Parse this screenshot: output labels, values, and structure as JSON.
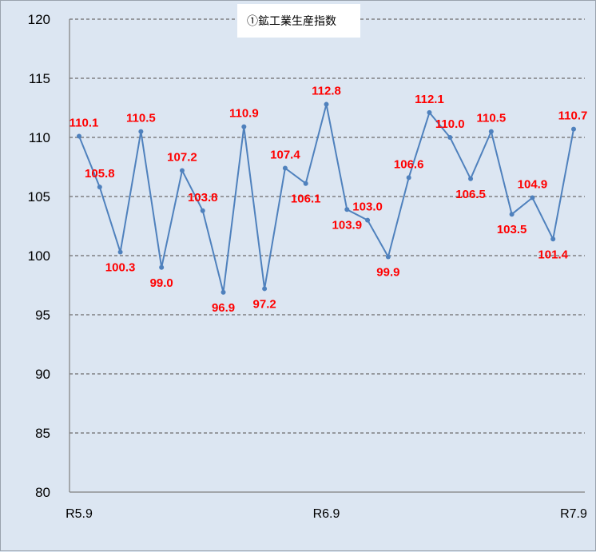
{
  "chart_data": {
    "type": "line",
    "title": "①鉱工業生産指数",
    "ylim": [
      80,
      120
    ],
    "y_ticks": [
      "80",
      "85",
      "90",
      "95",
      "100",
      "105",
      "110",
      "115",
      "120"
    ],
    "x_tick_labels": [
      {
        "index": 0,
        "label": "R5.9"
      },
      {
        "index": 12,
        "label": "R6.9"
      },
      {
        "index": 24,
        "label": "R7.9"
      }
    ],
    "grid": "horizontal dashed",
    "line_color": "#4f81bd",
    "label_color": "#ff0000",
    "series": [
      {
        "values": [
          110.1,
          105.8,
          100.3,
          110.5,
          99.0,
          107.2,
          103.8,
          96.9,
          110.9,
          97.2,
          107.4,
          106.1,
          112.8,
          103.9,
          103.0,
          99.9,
          106.6,
          112.1,
          110.0,
          106.5,
          110.5,
          103.5,
          104.9,
          101.4,
          110.7
        ],
        "labels": [
          "110.1",
          "105.8",
          "100.3",
          "110.5",
          "99.0",
          "107.2",
          "103.8",
          "96.9",
          "110.9",
          "97.2",
          "107.4",
          "106.1",
          "112.8",
          "103.9",
          "103.0",
          "99.9",
          "106.6",
          "112.1",
          "110.0",
          "106.5",
          "110.5",
          "103.5",
          "104.9",
          "101.4",
          "110.7"
        ]
      }
    ]
  }
}
